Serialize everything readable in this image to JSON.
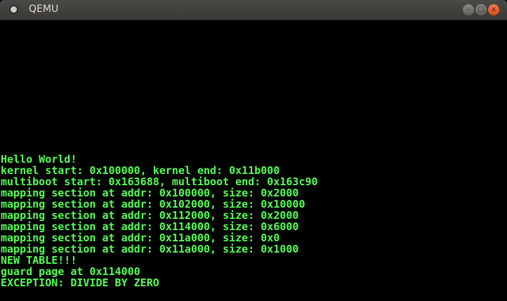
{
  "window": {
    "title": "QEMU",
    "app_icon": "qemu-icon"
  },
  "controls": {
    "minimize": "–",
    "maximize": "□",
    "close": "x"
  },
  "colors": {
    "text": "#55ff55",
    "background": "#000000",
    "close_button": "#e0541f"
  },
  "console": {
    "lines": [
      "Hello World!",
      "kernel start: 0x100000, kernel end: 0x11b000",
      "multiboot start: 0x163688, multiboot end: 0x163c90",
      "mapping section at addr: 0x100000, size: 0x2000",
      "mapping section at addr: 0x102000, size: 0x10000",
      "mapping section at addr: 0x112000, size: 0x2000",
      "mapping section at addr: 0x114000, size: 0x6000",
      "mapping section at addr: 0x11a000, size: 0x0",
      "mapping section at addr: 0x11a000, size: 0x1000",
      "NEW TABLE!!!",
      "guard page at 0x114000",
      "EXCEPTION: DIVIDE BY ZERO"
    ]
  }
}
